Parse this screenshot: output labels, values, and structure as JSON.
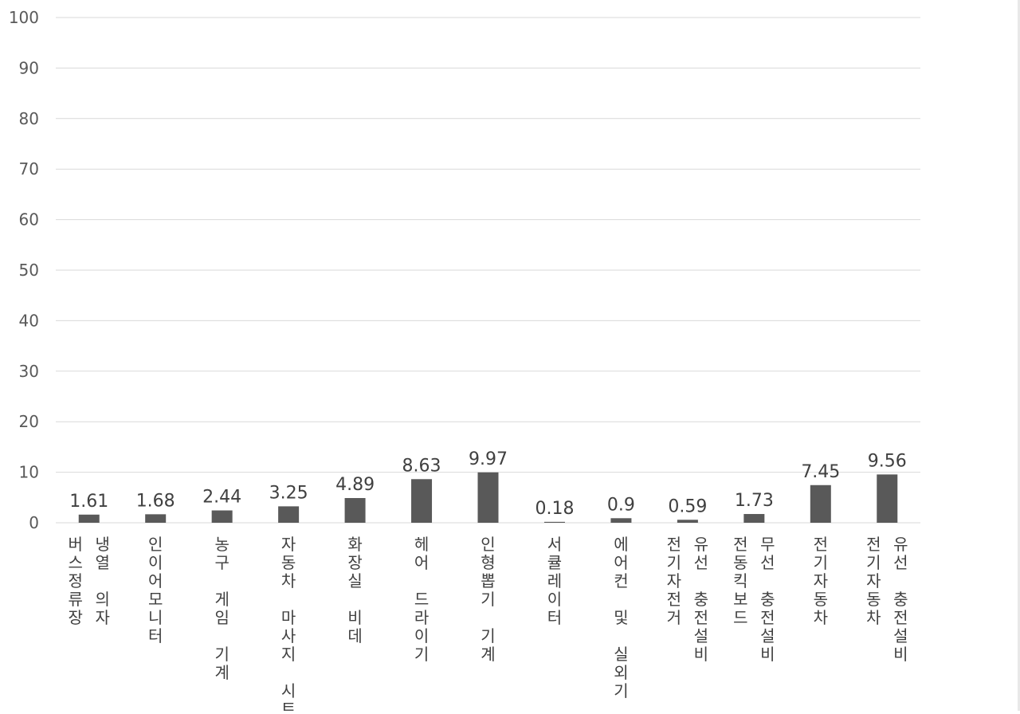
{
  "chart_data": {
    "type": "bar",
    "title": "",
    "xlabel": "",
    "ylabel": "",
    "ylim": [
      0,
      100
    ],
    "yticks": [
      0,
      10,
      20,
      30,
      40,
      50,
      60,
      70,
      80,
      90,
      100
    ],
    "grid": true,
    "legend": "none",
    "categories": [
      {
        "lines": [
          "버스정류장",
          "냉열 의자"
        ]
      },
      {
        "lines": [
          "인이어모니터"
        ]
      },
      {
        "lines": [
          "농구 게임 기계"
        ]
      },
      {
        "lines": [
          "자동차 마사지 시트"
        ]
      },
      {
        "lines": [
          "화장실 비데"
        ]
      },
      {
        "lines": [
          "헤어 드라이기"
        ]
      },
      {
        "lines": [
          "인형뽑기 기계"
        ]
      },
      {
        "lines": [
          "서큘레이터"
        ]
      },
      {
        "lines": [
          "에어컨 및 실외기"
        ]
      },
      {
        "lines": [
          "전기자전거",
          "유선 충전설비"
        ]
      },
      {
        "lines": [
          "전동킥보드",
          "무선 충전설비"
        ]
      },
      {
        "lines": [
          "전기자동차"
        ]
      },
      {
        "lines": [
          "전기자동차",
          "유선 충전설비"
        ]
      }
    ],
    "values": [
      1.61,
      1.68,
      2.44,
      3.25,
      4.89,
      8.63,
      9.97,
      0.18,
      0.9,
      0.59,
      1.73,
      7.45,
      9.56
    ],
    "data_labels": [
      "1.61",
      "1.68",
      "2.44",
      "3.25",
      "4.89",
      "8.63",
      "9.97",
      "0.18",
      "0.9",
      "0.59",
      "1.73",
      "7.45",
      "9.56"
    ],
    "colors": {
      "bar": "#595959",
      "grid": "#d9d9d9",
      "axis_text": "#595959",
      "label_text": "#404040"
    }
  }
}
